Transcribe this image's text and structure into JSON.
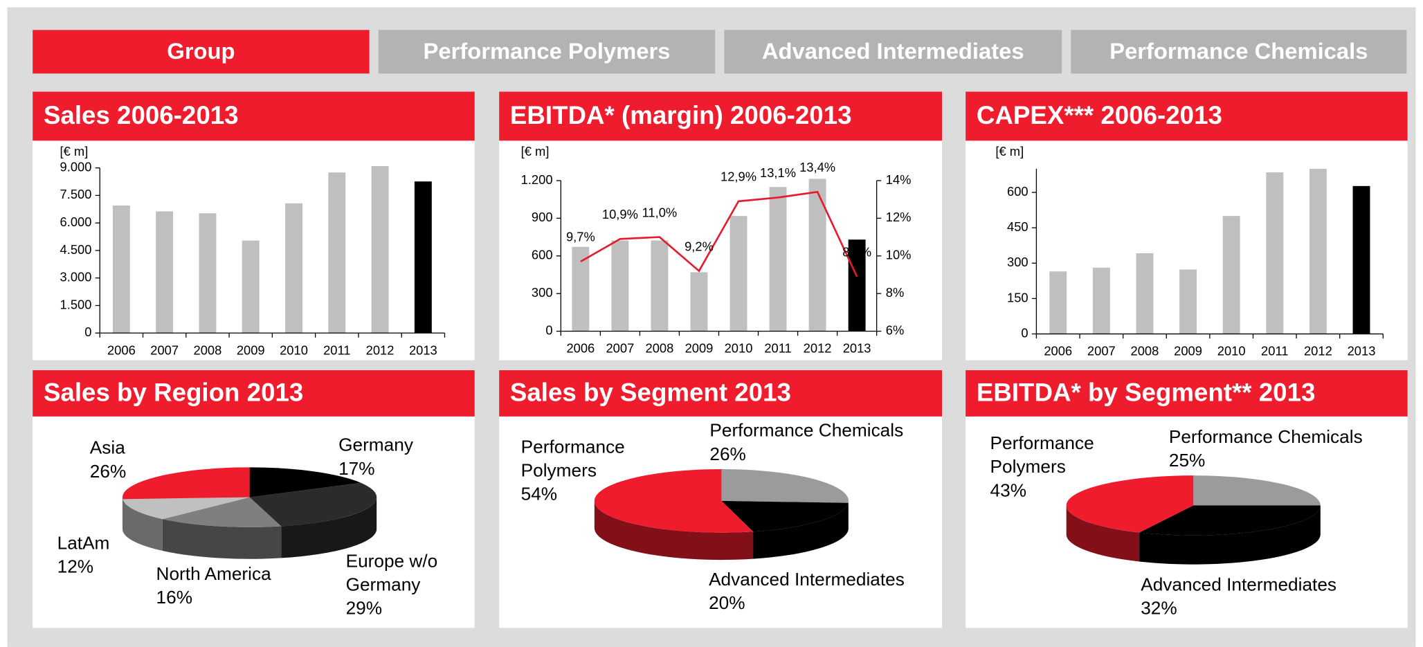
{
  "tabs": [
    {
      "label": "Group",
      "active": true
    },
    {
      "label": "Performance Polymers",
      "active": false
    },
    {
      "label": "Advanced Intermediates",
      "active": false
    },
    {
      "label": "Performance Chemicals",
      "active": false
    }
  ],
  "chart_data": [
    {
      "type": "bar",
      "title": "Sales 2006-2013",
      "ylabel": "[€ m]",
      "categories": [
        "2006",
        "2007",
        "2008",
        "2009",
        "2010",
        "2011",
        "2012",
        "2013"
      ],
      "values": [
        6950,
        6630,
        6530,
        5040,
        7070,
        8750,
        9100,
        8260
      ],
      "colors": [
        "#bfbfbf",
        "#bfbfbf",
        "#bfbfbf",
        "#bfbfbf",
        "#bfbfbf",
        "#bfbfbf",
        "#bfbfbf",
        "#000000"
      ],
      "ylim": [
        0,
        9000
      ],
      "yticks": [
        0,
        {
          "value": 1500,
          "label": "1.500"
        },
        {
          "value": 3000,
          "label": "3.000"
        },
        {
          "value": 4500,
          "label": "4.500"
        },
        {
          "value": 6000,
          "label": "6.000"
        },
        {
          "value": 7500,
          "label": "7.500"
        },
        {
          "value": 9000,
          "label": "9.000"
        }
      ]
    },
    {
      "type": "bar",
      "title": "EBITDA* (margin) 2006-2013",
      "ylabel": "[€ m]",
      "categories": [
        "2006",
        "2007",
        "2008",
        "2009",
        "2010",
        "2011",
        "2012",
        "2013"
      ],
      "values": [
        672,
        723,
        723,
        470,
        918,
        1149,
        1214,
        730
      ],
      "colors": [
        "#bfbfbf",
        "#bfbfbf",
        "#bfbfbf",
        "#bfbfbf",
        "#bfbfbf",
        "#bfbfbf",
        "#bfbfbf",
        "#000000"
      ],
      "ylim": [
        0,
        1200
      ],
      "yticks": [
        0,
        300,
        600,
        900,
        {
          "value": 1200,
          "label": "1.200"
        }
      ],
      "line": {
        "axis": "y2",
        "color": "#e8192c",
        "values": [
          9.7,
          10.9,
          11.0,
          9.2,
          12.9,
          13.1,
          13.4,
          8.9
        ],
        "value_labels": [
          "9,7%",
          "10,9%",
          "11,0%",
          "9,2%",
          "12,9%",
          "13,1%",
          "13,4%",
          "8,9%"
        ]
      },
      "y2lim": [
        6,
        14
      ],
      "y2ticks": [
        {
          "value": 6,
          "label": "6%"
        },
        {
          "value": 8,
          "label": "8%"
        },
        {
          "value": 10,
          "label": "10%"
        },
        {
          "value": 12,
          "label": "12%"
        },
        {
          "value": 14,
          "label": "14%"
        }
      ]
    },
    {
      "type": "bar",
      "title": "CAPEX*** 2006-2013",
      "ylabel": "[€ m]",
      "categories": [
        "2006",
        "2007",
        "2008",
        "2009",
        "2010",
        "2011",
        "2012",
        "2013"
      ],
      "values": [
        265,
        281,
        342,
        273,
        500,
        685,
        700,
        627
      ],
      "colors": [
        "#bfbfbf",
        "#bfbfbf",
        "#bfbfbf",
        "#bfbfbf",
        "#bfbfbf",
        "#bfbfbf",
        "#bfbfbf",
        "#000000"
      ],
      "ylim": [
        0,
        700
      ],
      "yticks": [
        0,
        150,
        300,
        450,
        600
      ]
    },
    {
      "type": "pie",
      "title": "Sales by Region 2013",
      "categories": [
        "Germany",
        "Europe w/o Germany",
        "North America",
        "LatAm",
        "Asia"
      ],
      "values": [
        17,
        29,
        16,
        12,
        26
      ],
      "value_labels": [
        "17%",
        "29%",
        "16%",
        "12%",
        "26%"
      ],
      "colors": [
        "#000000",
        "#2b2b2b",
        "#7f7f7f",
        "#c0c0c0",
        "#ee1c2d"
      ]
    },
    {
      "type": "pie",
      "title": "Sales by Segment 2013",
      "categories": [
        "Performance Chemicals",
        "Advanced Intermediates",
        "Performance Polymers"
      ],
      "values": [
        26,
        20,
        54
      ],
      "value_labels": [
        "26%",
        "20%",
        "54%"
      ],
      "colors": [
        "#9b9b9b",
        "#000000",
        "#ee1c2d"
      ]
    },
    {
      "type": "pie",
      "title": "EBITDA* by Segment** 2013",
      "categories": [
        "Performance Chemicals",
        "Advanced Intermediates",
        "Performance Polymers"
      ],
      "values": [
        25,
        32,
        43
      ],
      "value_labels": [
        "25%",
        "32%",
        "43%"
      ],
      "colors": [
        "#9b9b9b",
        "#000000",
        "#ee1c2d"
      ]
    }
  ]
}
